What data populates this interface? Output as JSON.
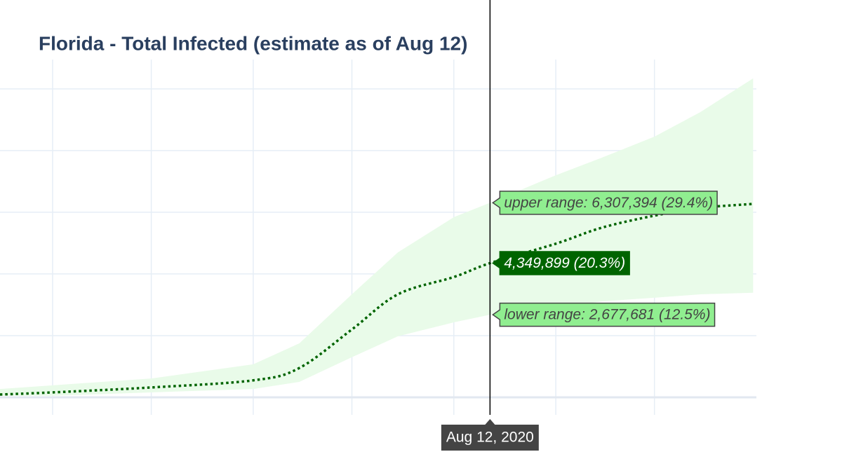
{
  "chart_data": {
    "type": "line",
    "title": "Florida - Total Infected (estimate as of Aug 12)",
    "x": [
      "2020-03-16",
      "2020-04-01",
      "2020-05-01",
      "2020-06-01",
      "2020-06-15",
      "2020-07-01",
      "2020-07-15",
      "2020-08-01",
      "2020-08-12",
      "2020-09-01",
      "2020-09-15",
      "2020-10-01",
      "2020-10-15",
      "2020-10-31"
    ],
    "xlim": [
      "2020-03-16",
      "2020-11-01"
    ],
    "xticks": [
      "2020-04-01",
      "2020-05-01",
      "2020-06-01",
      "2020-07-01",
      "2020-08-01",
      "2020-09-01",
      "2020-10-01"
    ],
    "ylim": [
      0,
      10700000
    ],
    "yticks": [
      0,
      2000000,
      4000000,
      6000000,
      8000000,
      10000000
    ],
    "grid": true,
    "band_color": "#e9fbe9",
    "series": [
      {
        "color": "#006400",
        "dash": "dot",
        "values": [
          90000,
          160000,
          320000,
          550000,
          950000,
          2200000,
          3340000,
          3900000,
          4349899,
          4980000,
          5500000,
          5890000,
          6140000,
          6270000
        ]
      },
      {
        "color": "#90ee90",
        "values": [
          270000,
          390000,
          610000,
          1070000,
          1750000,
          3340000,
          4700000,
          5840000,
          6307394,
          7200000,
          7770000,
          8450000,
          9250000,
          10340000
        ]
      },
      {
        "color": "#90ee90",
        "values": [
          50000,
          50000,
          160000,
          270000,
          500000,
          1300000,
          1980000,
          2430000,
          2677681,
          2890000,
          3110000,
          3230000,
          3340000,
          3390000
        ]
      }
    ],
    "spike": {
      "x": "2020-08-12",
      "label": "Aug 12, 2020"
    },
    "hover_labels": [
      "4,349,899 (20.3%)",
      "upper range: 6,307,394 (29.4%)",
      "lower range: 2,677,681 (12.5%)"
    ]
  }
}
